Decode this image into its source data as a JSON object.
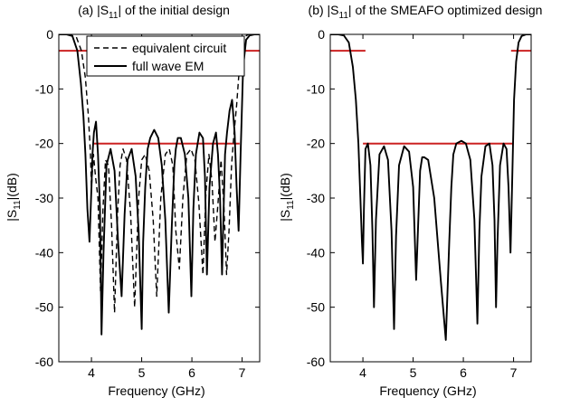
{
  "chart_data": [
    {
      "type": "line",
      "title_prefix": "(a) |S",
      "title_sub": "11",
      "title_suffix": "| of the initial design",
      "xlabel": "Frequency (GHz)",
      "ylabel_prefix": "|S",
      "ylabel_sub": "11",
      "ylabel_suffix": "|(dB)",
      "xlim": [
        3.35,
        7.35
      ],
      "ylim": [
        -60,
        0
      ],
      "xticks": [
        4,
        5,
        6,
        7
      ],
      "yticks": [
        0,
        -10,
        -20,
        -30,
        -40,
        -50,
        -60
      ],
      "grid": false,
      "legend": {
        "placement": "top",
        "entries": [
          {
            "label": "equivalent circuit",
            "style": "dashed"
          },
          {
            "label": "full wave EM",
            "style": "solid"
          }
        ]
      },
      "reference_lines": [
        {
          "color": "#cc2222",
          "points": [
            [
              3.35,
              -3
            ],
            [
              7.35,
              -3
            ]
          ]
        },
        {
          "color": "#cc2222",
          "points": [
            [
              4.05,
              -20
            ],
            [
              6.95,
              -20
            ]
          ]
        }
      ],
      "series": [
        {
          "name": "equivalent circuit",
          "style": "dashed",
          "x": [
            3.35,
            3.55,
            3.7,
            3.8,
            3.88,
            3.94,
            3.98,
            4.0,
            4.04,
            4.08,
            4.13,
            4.18,
            4.23,
            4.28,
            4.34,
            4.4,
            4.46,
            4.52,
            4.57,
            4.63,
            4.7,
            4.78,
            4.86,
            4.94,
            5.0,
            5.07,
            5.15,
            5.23,
            5.3,
            5.38,
            5.47,
            5.55,
            5.62,
            5.68,
            5.75,
            5.82,
            5.9,
            5.98,
            6.06,
            6.14,
            6.22,
            6.28,
            6.34,
            6.4,
            6.46,
            6.52,
            6.58,
            6.64,
            6.69,
            6.74,
            6.79,
            6.84,
            6.89,
            6.93,
            6.97,
            7.02,
            7.07,
            7.13,
            7.2,
            7.35
          ],
          "y": [
            0,
            0,
            -0.5,
            -3,
            -8,
            -15,
            -22,
            -28,
            -22,
            -26,
            -30,
            -47,
            -32,
            -23,
            -24,
            -35,
            -51,
            -33,
            -24,
            -21,
            -23,
            -33,
            -50,
            -30,
            -23,
            -22,
            -25,
            -34,
            -48,
            -30,
            -22,
            -21,
            -24,
            -36,
            -43,
            -30,
            -22,
            -21,
            -23,
            -31,
            -44,
            -29,
            -22,
            -27,
            -38,
            -31,
            -23,
            -32,
            -44,
            -36,
            -24,
            -18,
            -13,
            -8,
            -5,
            -1.5,
            -0.3,
            0,
            0,
            0
          ]
        },
        {
          "name": "full wave EM",
          "style": "solid",
          "x": [
            3.35,
            3.5,
            3.62,
            3.72,
            3.79,
            3.84,
            3.88,
            3.92,
            3.96,
            4.0,
            4.02,
            4.05,
            4.09,
            4.13,
            4.17,
            4.2,
            4.24,
            4.3,
            4.38,
            4.46,
            4.53,
            4.6,
            4.66,
            4.72,
            4.8,
            4.88,
            4.94,
            5.0,
            5.03,
            5.07,
            5.12,
            5.17,
            5.25,
            5.33,
            5.4,
            5.47,
            5.54,
            5.6,
            5.65,
            5.68,
            5.72,
            5.78,
            5.86,
            5.93,
            5.99,
            6.03,
            6.08,
            6.15,
            6.22,
            6.26,
            6.3,
            6.35,
            6.42,
            6.48,
            6.52,
            6.56,
            6.6,
            6.63,
            6.66,
            6.7,
            6.75,
            6.8,
            6.85,
            6.89,
            6.93,
            6.97,
            7.02,
            7.08,
            7.15,
            7.25,
            7.35
          ],
          "y": [
            0,
            0,
            -0.3,
            -3,
            -9,
            -15,
            -22,
            -32,
            -38,
            -28,
            -22,
            -18,
            -16,
            -22,
            -32,
            -55,
            -40,
            -24,
            -21,
            -25,
            -38,
            -48,
            -33,
            -23,
            -21,
            -26,
            -36,
            -54,
            -38,
            -28,
            -21,
            -19,
            -17.5,
            -19,
            -24,
            -34,
            -51,
            -35,
            -24,
            -21,
            -19,
            -19,
            -22,
            -30,
            -48,
            -32,
            -22,
            -18,
            -19,
            -26,
            -44,
            -28,
            -20,
            -18,
            -22,
            -30,
            -44,
            -33,
            -22,
            -18,
            -14,
            -12,
            -18,
            -28,
            -36,
            -22,
            -6,
            -1,
            -0.2,
            0,
            0
          ]
        }
      ]
    },
    {
      "type": "line",
      "title_prefix": "(b) |S",
      "title_sub": "11",
      "title_suffix": "| of the SMEAFO optimized design",
      "xlabel": "Frequency (GHz)",
      "ylabel_prefix": "|S",
      "ylabel_sub": "11",
      "ylabel_suffix": "|(dB)",
      "xlim": [
        3.35,
        7.35
      ],
      "ylim": [
        -60,
        0
      ],
      "xticks": [
        4,
        5,
        6,
        7
      ],
      "yticks": [
        0,
        -10,
        -20,
        -30,
        -40,
        -50,
        -60
      ],
      "grid": false,
      "reference_lines": [
        {
          "color": "#cc2222",
          "points": [
            [
              3.35,
              -3
            ],
            [
              4.05,
              -3
            ]
          ]
        },
        {
          "color": "#cc2222",
          "points": [
            [
              4.0,
              -20
            ],
            [
              7.0,
              -20
            ]
          ]
        },
        {
          "color": "#cc2222",
          "points": [
            [
              6.95,
              -3
            ],
            [
              7.35,
              -3
            ]
          ]
        }
      ],
      "series": [
        {
          "name": "",
          "style": "solid",
          "x": [
            3.35,
            3.5,
            3.62,
            3.72,
            3.8,
            3.86,
            3.91,
            3.95,
            3.98,
            4.0,
            4.02,
            4.05,
            4.1,
            4.15,
            4.19,
            4.22,
            4.26,
            4.33,
            4.42,
            4.5,
            4.57,
            4.62,
            4.66,
            4.72,
            4.82,
            4.92,
            5.0,
            5.06,
            5.1,
            5.14,
            5.18,
            5.22,
            5.3,
            5.42,
            5.55,
            5.65,
            5.72,
            5.76,
            5.8,
            5.86,
            5.96,
            6.05,
            6.14,
            6.22,
            6.28,
            6.32,
            6.36,
            6.44,
            6.52,
            6.58,
            6.62,
            6.65,
            6.68,
            6.73,
            6.8,
            6.86,
            6.9,
            6.94,
            6.97,
            7.01,
            7.05,
            7.1,
            7.16,
            7.25,
            7.35
          ],
          "y": [
            0,
            0,
            -0.2,
            -1.5,
            -6,
            -12,
            -20,
            -30,
            -38,
            -42,
            -32,
            -21,
            -20,
            -24,
            -36,
            -50,
            -34,
            -22,
            -20.5,
            -23,
            -36,
            -54,
            -37,
            -24,
            -20.5,
            -21.5,
            -28,
            -45,
            -35,
            -25,
            -22.5,
            -22.5,
            -23,
            -30,
            -45,
            -56,
            -38,
            -28,
            -22,
            -20,
            -19.5,
            -20,
            -23,
            -34,
            -53,
            -36,
            -26,
            -20.5,
            -20,
            -24,
            -34,
            -50,
            -38,
            -24,
            -20,
            -21,
            -28,
            -40,
            -28,
            -12,
            -5,
            -1.5,
            -0.3,
            0,
            0
          ]
        }
      ]
    }
  ]
}
